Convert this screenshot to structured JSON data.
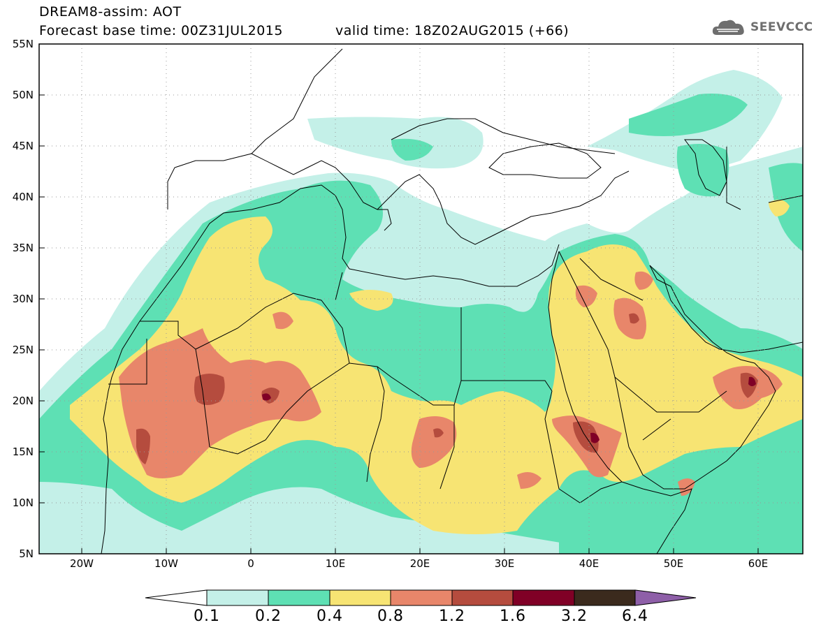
{
  "header": {
    "title": "DREAM8-assim: AOT",
    "base_time": "Forecast base time: 00Z31JUL2015",
    "valid_time": "valid time: 18Z02AUG2015 (+66)",
    "logo_text": "SEEVCCC"
  },
  "map": {
    "projection": "lat-lon",
    "lon_range": [
      -25,
      65
    ],
    "lat_range": [
      5,
      55
    ],
    "lat_labels": [
      "55N",
      "50N",
      "45N",
      "40N",
      "35N",
      "30N",
      "25N",
      "20N",
      "15N",
      "10N",
      "5N"
    ],
    "lon_labels": [
      "20W",
      "10W",
      "0",
      "10E",
      "20E",
      "30E",
      "40E",
      "50E",
      "60E"
    ],
    "grid": "dotted"
  },
  "colorbar": {
    "levels": [
      "0.1",
      "0.2",
      "0.4",
      "0.8",
      "1.2",
      "1.6",
      "3.2",
      "6.4"
    ],
    "colors": [
      "#c4f0e8",
      "#5ee0b4",
      "#f7e473",
      "#e8866a",
      "#b54c3e",
      "#800026",
      "#3b2a1d",
      "#8e5fa8"
    ],
    "under_color": "#ffffff"
  },
  "colors": {
    "c1": "#c4f0e8",
    "c2": "#5ee0b4",
    "c3": "#f7e473",
    "c4": "#e8866a",
    "c5": "#b54c3e",
    "c6": "#800026"
  }
}
